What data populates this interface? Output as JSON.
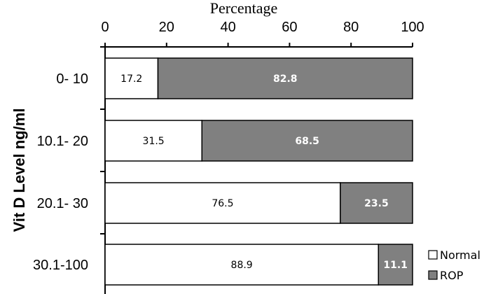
{
  "chart_data": {
    "type": "bar",
    "orientation": "horizontal",
    "stacked": true,
    "title": "Percentage",
    "ylabel": "Vit D Level ng/ml",
    "xlim": [
      0,
      100
    ],
    "x_ticks": [
      "0",
      "20",
      "40",
      "60",
      "80",
      "100"
    ],
    "categories": [
      "0- 10",
      "10.1- 20",
      "20.1- 30",
      "30.1-100"
    ],
    "series": [
      {
        "name": "Normal",
        "values": [
          17.2,
          31.5,
          76.5,
          88.9
        ],
        "labels": [
          "17.2",
          "31.5",
          "76.5",
          "88.9"
        ],
        "color": "#ffffff"
      },
      {
        "name": "ROP",
        "values": [
          82.8,
          68.5,
          23.5,
          11.1
        ],
        "labels": [
          "82.8",
          "68.5",
          "23.5",
          "11.1"
        ],
        "color": "#808080"
      }
    ],
    "legend_position": "bottom-right",
    "grid": false
  }
}
